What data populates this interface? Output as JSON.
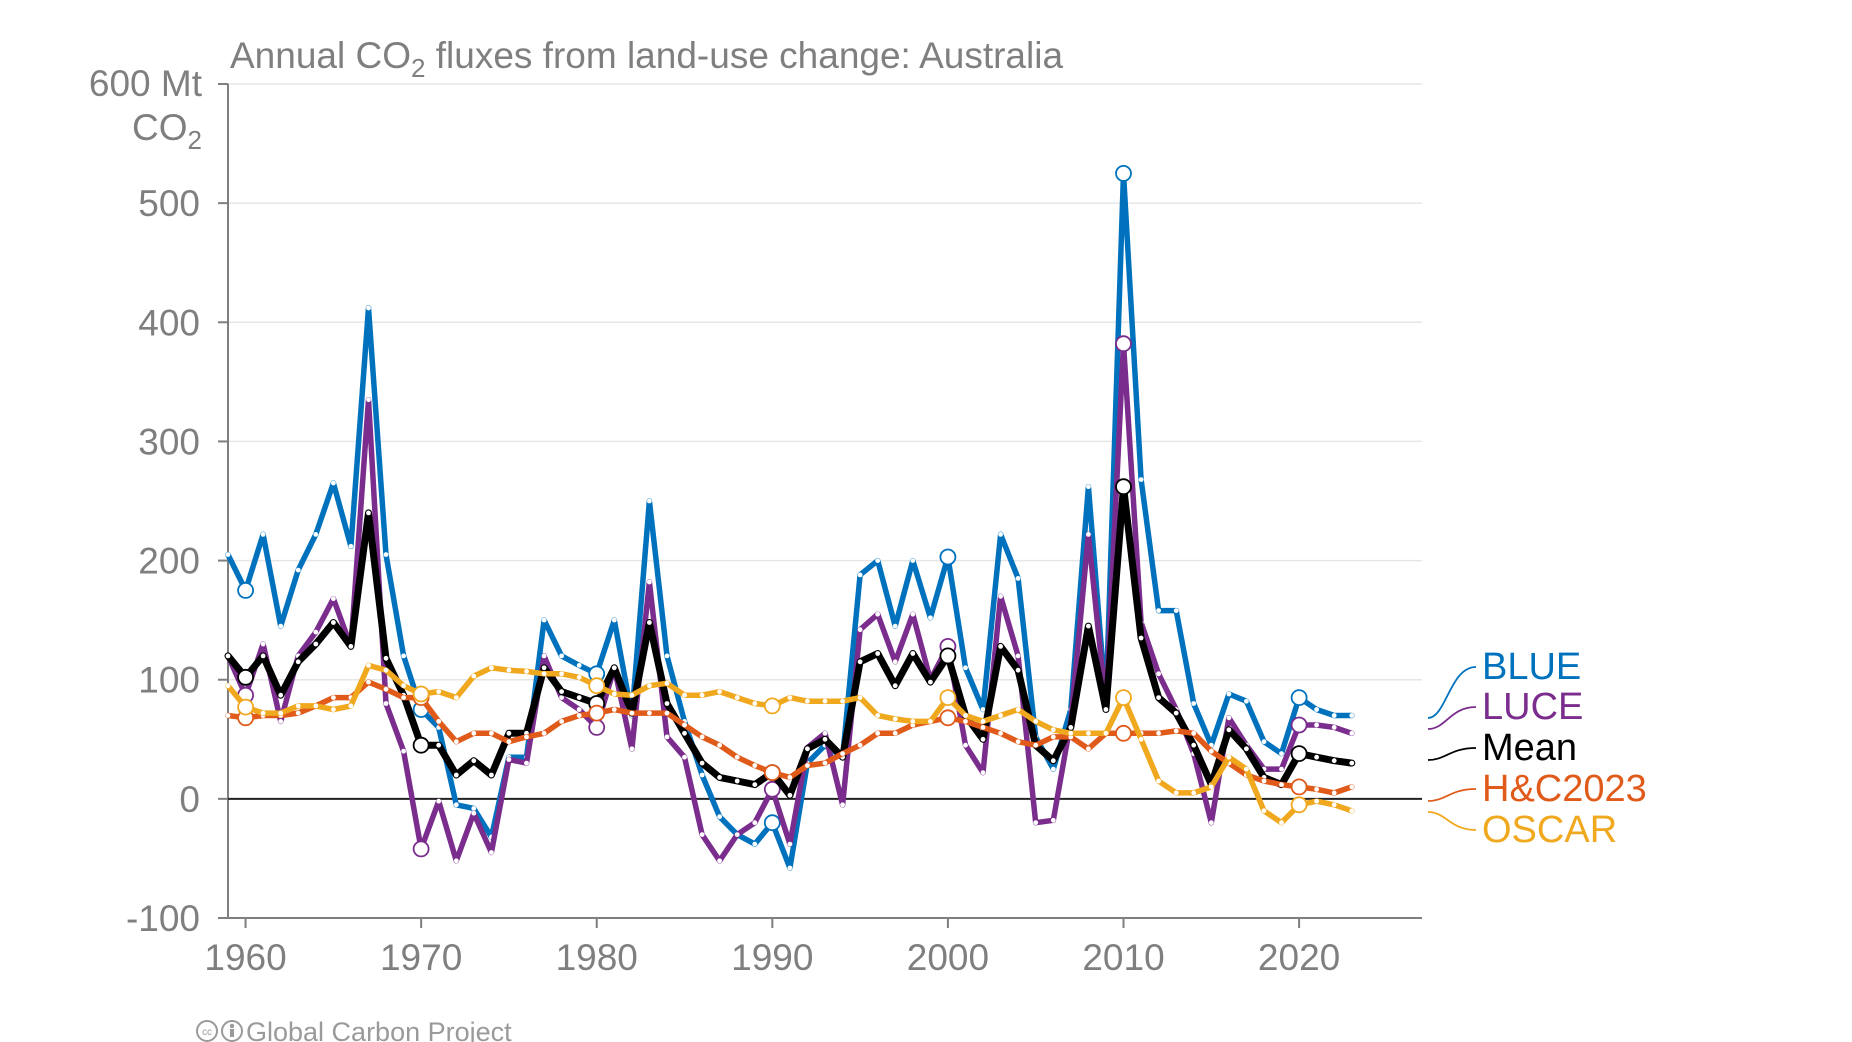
{
  "chart_data": {
    "type": "line",
    "title_prefix": "Annual CO",
    "title_sub": "2",
    "title_suffix": " fluxes from land-use change: Australia",
    "ylabel_top": "600 Mt",
    "ylabel_unit": "CO",
    "ylabel_unit_sub": "2",
    "ylim": [
      -100,
      600
    ],
    "yticks": [
      -100,
      0,
      100,
      200,
      300,
      400,
      500
    ],
    "xlim": [
      1959,
      2027
    ],
    "xticks": [
      1960,
      1970,
      1980,
      1990,
      2000,
      2010,
      2020
    ],
    "grid": true,
    "legend_position": "right",
    "footer": "Global Carbon Project",
    "x": [
      1959,
      1960,
      1961,
      1962,
      1963,
      1964,
      1965,
      1966,
      1967,
      1968,
      1969,
      1970,
      1971,
      1972,
      1973,
      1974,
      1975,
      1976,
      1977,
      1978,
      1979,
      1980,
      1981,
      1982,
      1983,
      1984,
      1985,
      1986,
      1987,
      1988,
      1989,
      1990,
      1991,
      1992,
      1993,
      1994,
      1995,
      1996,
      1997,
      1998,
      1999,
      2000,
      2001,
      2002,
      2003,
      2004,
      2005,
      2006,
      2007,
      2008,
      2009,
      2010,
      2011,
      2012,
      2013,
      2014,
      2015,
      2016,
      2017,
      2018,
      2019,
      2020,
      2021,
      2022,
      2023
    ],
    "series": [
      {
        "name": "BLUE",
        "color": "#0072bd",
        "values": [
          205,
          175,
          222,
          145,
          192,
          222,
          265,
          212,
          412,
          205,
          120,
          75,
          60,
          -5,
          -8,
          -32,
          35,
          35,
          150,
          120,
          112,
          105,
          150,
          70,
          250,
          120,
          65,
          20,
          -15,
          -30,
          -38,
          -20,
          -58,
          30,
          45,
          35,
          188,
          200,
          145,
          200,
          152,
          203,
          110,
          75,
          222,
          185,
          52,
          25,
          75,
          262,
          80,
          525,
          268,
          158,
          158,
          80,
          45,
          88,
          82,
          48,
          38,
          85,
          75,
          70,
          70
        ]
      },
      {
        "name": "LUCE",
        "color": "#7b2d8e",
        "values": [
          120,
          87,
          130,
          65,
          120,
          140,
          168,
          128,
          335,
          80,
          40,
          -42,
          -2,
          -52,
          -12,
          -45,
          33,
          30,
          120,
          85,
          75,
          60,
          110,
          42,
          182,
          52,
          35,
          -30,
          -52,
          -30,
          -20,
          8,
          -38,
          43,
          55,
          -5,
          142,
          155,
          115,
          155,
          100,
          128,
          45,
          22,
          170,
          120,
          -20,
          -18,
          65,
          222,
          78,
          382,
          148,
          105,
          75,
          38,
          -20,
          68,
          45,
          25,
          25,
          62,
          62,
          60,
          55
        ]
      },
      {
        "name": "Mean",
        "color": "#000000",
        "values": [
          120,
          102,
          120,
          87,
          115,
          130,
          148,
          128,
          240,
          118,
          87,
          45,
          45,
          20,
          32,
          20,
          55,
          55,
          110,
          90,
          85,
          80,
          110,
          72,
          148,
          80,
          55,
          30,
          18,
          15,
          12,
          22,
          3,
          42,
          50,
          35,
          115,
          122,
          95,
          122,
          98,
          120,
          70,
          50,
          128,
          108,
          45,
          32,
          60,
          145,
          75,
          262,
          135,
          85,
          72,
          45,
          12,
          58,
          42,
          18,
          12,
          38,
          35,
          32,
          30
        ]
      },
      {
        "name": "H&C2023",
        "color": "#e05a1a",
        "values": [
          70,
          68,
          70,
          70,
          72,
          78,
          85,
          85,
          98,
          92,
          85,
          85,
          65,
          48,
          55,
          55,
          48,
          52,
          55,
          65,
          70,
          72,
          75,
          72,
          72,
          72,
          62,
          52,
          45,
          35,
          28,
          22,
          18,
          28,
          30,
          38,
          45,
          55,
          55,
          62,
          65,
          68,
          65,
          60,
          55,
          48,
          45,
          52,
          52,
          42,
          55,
          55,
          55,
          55,
          57,
          55,
          40,
          30,
          20,
          15,
          12,
          10,
          8,
          5,
          10
        ]
      },
      {
        "name": "OSCAR",
        "color": "#f0a81e",
        "values": [
          95,
          77,
          72,
          72,
          78,
          78,
          75,
          78,
          112,
          108,
          95,
          88,
          90,
          85,
          103,
          110,
          108,
          107,
          105,
          105,
          102,
          95,
          88,
          87,
          95,
          97,
          87,
          87,
          90,
          85,
          80,
          78,
          85,
          82,
          82,
          82,
          85,
          70,
          67,
          65,
          65,
          85,
          70,
          65,
          70,
          75,
          65,
          58,
          55,
          55,
          55,
          85,
          50,
          15,
          5,
          5,
          10,
          35,
          25,
          -10,
          -20,
          -5,
          -2,
          -5,
          -10
        ]
      }
    ],
    "highlight_years": [
      1960,
      1970,
      1980,
      1990,
      2000,
      2010,
      2020
    ]
  }
}
